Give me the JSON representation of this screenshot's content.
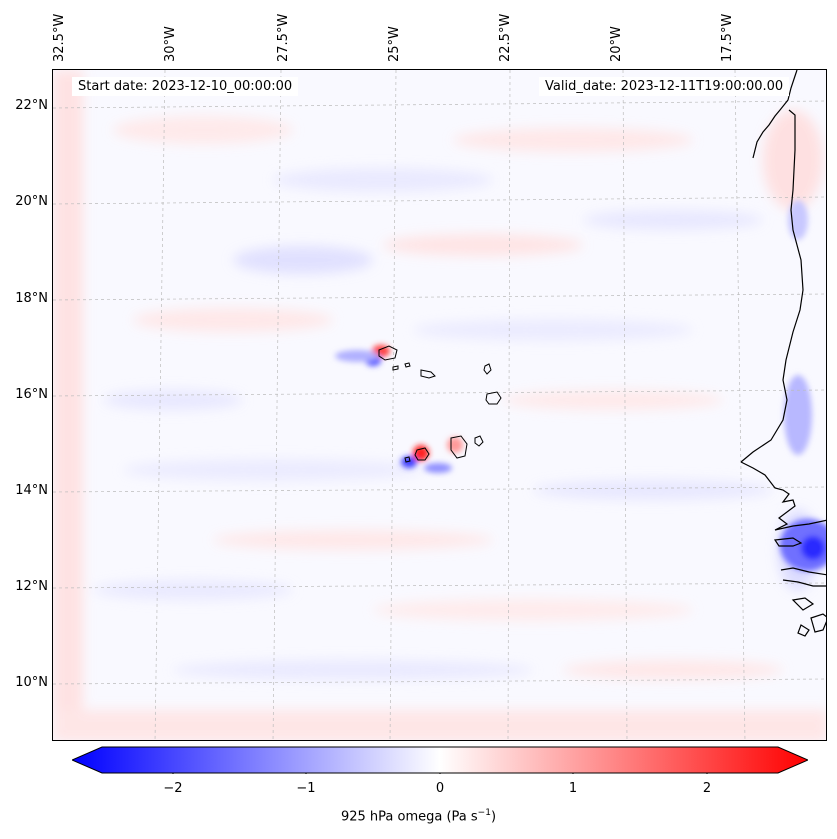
{
  "map": {
    "start_label": "Start date: 2023-12-10_00:00:00",
    "valid_label": "Valid_date: 2023-12-11T19:00:00.00",
    "lon_labels": [
      "32.5°W",
      "30°W",
      "27.5°W",
      "25°W",
      "22.5°W",
      "20°W",
      "17.5°W"
    ],
    "lat_labels": [
      "22°N",
      "20°N",
      "18°N",
      "16°N",
      "14°N",
      "12°N",
      "10°N"
    ],
    "colors": {
      "negative": "#0000ff",
      "neutral": "#ffffff",
      "positive": "#ff0000"
    }
  },
  "colorbar": {
    "tick_labels": [
      "−2",
      "−1",
      "0",
      "1",
      "2"
    ],
    "label_text": "925 hPa omega (Pa s",
    "label_exponent": "−1",
    "label_suffix": ")",
    "range": [
      -2.7,
      2.7
    ]
  }
}
